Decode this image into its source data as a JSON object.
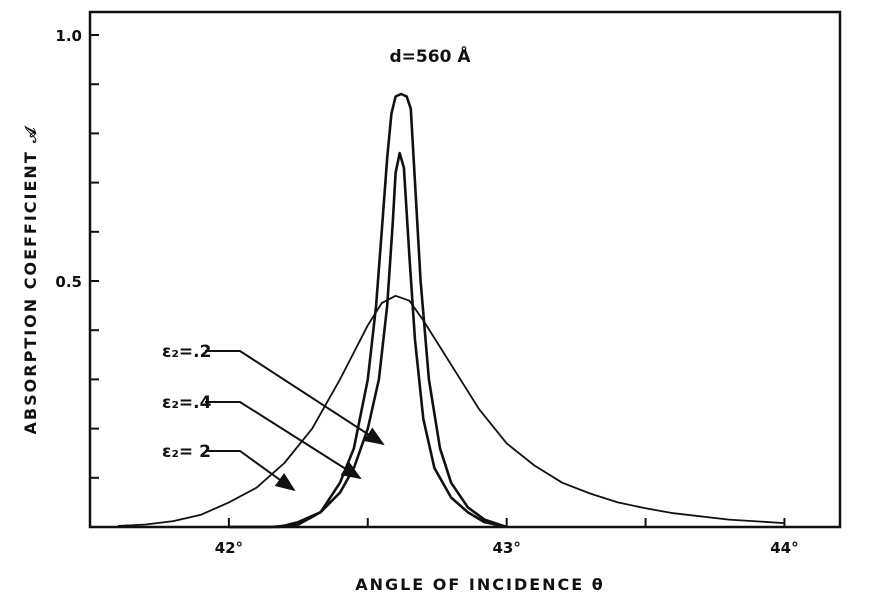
{
  "chart_data": {
    "type": "line",
    "title": "d=560 Å",
    "xlabel": "ANGLE OF INCIDENCE θ",
    "ylabel": "ABSORPTION COEFFICIENT 𝒜",
    "xlim": [
      41.5,
      44.2
    ],
    "ylim": [
      0,
      1.0
    ],
    "x_ticks": [
      42,
      42.5,
      43,
      43.5,
      44
    ],
    "x_tick_labels": [
      {
        "x": 42,
        "text": "42°"
      },
      {
        "x": 43,
        "text": "43°"
      },
      {
        "x": 44,
        "text": "44°"
      }
    ],
    "y_ticks": [
      0.1,
      0.2,
      0.3,
      0.4,
      0.5,
      0.6,
      0.7,
      0.8,
      0.9,
      1.0
    ],
    "y_tick_labels": [
      {
        "y": 1.0,
        "text": "1.0"
      },
      {
        "y": 0.5,
        "text": "0.5"
      }
    ],
    "grid": false,
    "series": [
      {
        "name": "ε₂=.2",
        "x": [
          42.0,
          42.15,
          42.25,
          42.33,
          42.4,
          42.45,
          42.5,
          42.53,
          42.55,
          42.57,
          42.585,
          42.6,
          42.62,
          42.64,
          42.655,
          42.67,
          42.69,
          42.72,
          42.76,
          42.8,
          42.86,
          42.92,
          43.0
        ],
        "y": [
          0.0,
          0.0,
          0.005,
          0.03,
          0.09,
          0.16,
          0.3,
          0.45,
          0.6,
          0.75,
          0.84,
          0.875,
          0.88,
          0.875,
          0.85,
          0.7,
          0.5,
          0.3,
          0.16,
          0.09,
          0.04,
          0.015,
          0.0
        ]
      },
      {
        "name": "ε₂=.4",
        "x": [
          42.0,
          42.18,
          42.25,
          42.33,
          42.4,
          42.45,
          42.5,
          42.54,
          42.57,
          42.59,
          42.6,
          42.615,
          42.63,
          42.65,
          42.67,
          42.7,
          42.74,
          42.8,
          42.86,
          42.92,
          43.0
        ],
        "y": [
          0.0,
          0.0,
          0.01,
          0.03,
          0.07,
          0.12,
          0.2,
          0.3,
          0.45,
          0.62,
          0.72,
          0.76,
          0.73,
          0.55,
          0.38,
          0.22,
          0.12,
          0.06,
          0.03,
          0.01,
          0.0
        ]
      },
      {
        "name": "ε₂= 2",
        "x": [
          41.6,
          41.7,
          41.8,
          41.9,
          42.0,
          42.1,
          42.2,
          42.3,
          42.4,
          42.5,
          42.55,
          42.6,
          42.65,
          42.7,
          42.8,
          42.9,
          43.0,
          43.1,
          43.2,
          43.3,
          43.4,
          43.5,
          43.6,
          43.8,
          44.0
        ],
        "y": [
          0.002,
          0.005,
          0.012,
          0.025,
          0.05,
          0.08,
          0.13,
          0.2,
          0.3,
          0.41,
          0.455,
          0.47,
          0.46,
          0.42,
          0.33,
          0.24,
          0.17,
          0.125,
          0.09,
          0.068,
          0.05,
          0.038,
          0.028,
          0.015,
          0.008
        ]
      }
    ],
    "annotations": [
      {
        "text": "ε₂=.2",
        "sub": "2",
        "points_to_series": 0
      },
      {
        "text": "ε₂=.4",
        "sub": "2",
        "points_to_series": 1
      },
      {
        "text": "ε₂= 2",
        "sub": "2",
        "points_to_series": 2
      }
    ]
  }
}
